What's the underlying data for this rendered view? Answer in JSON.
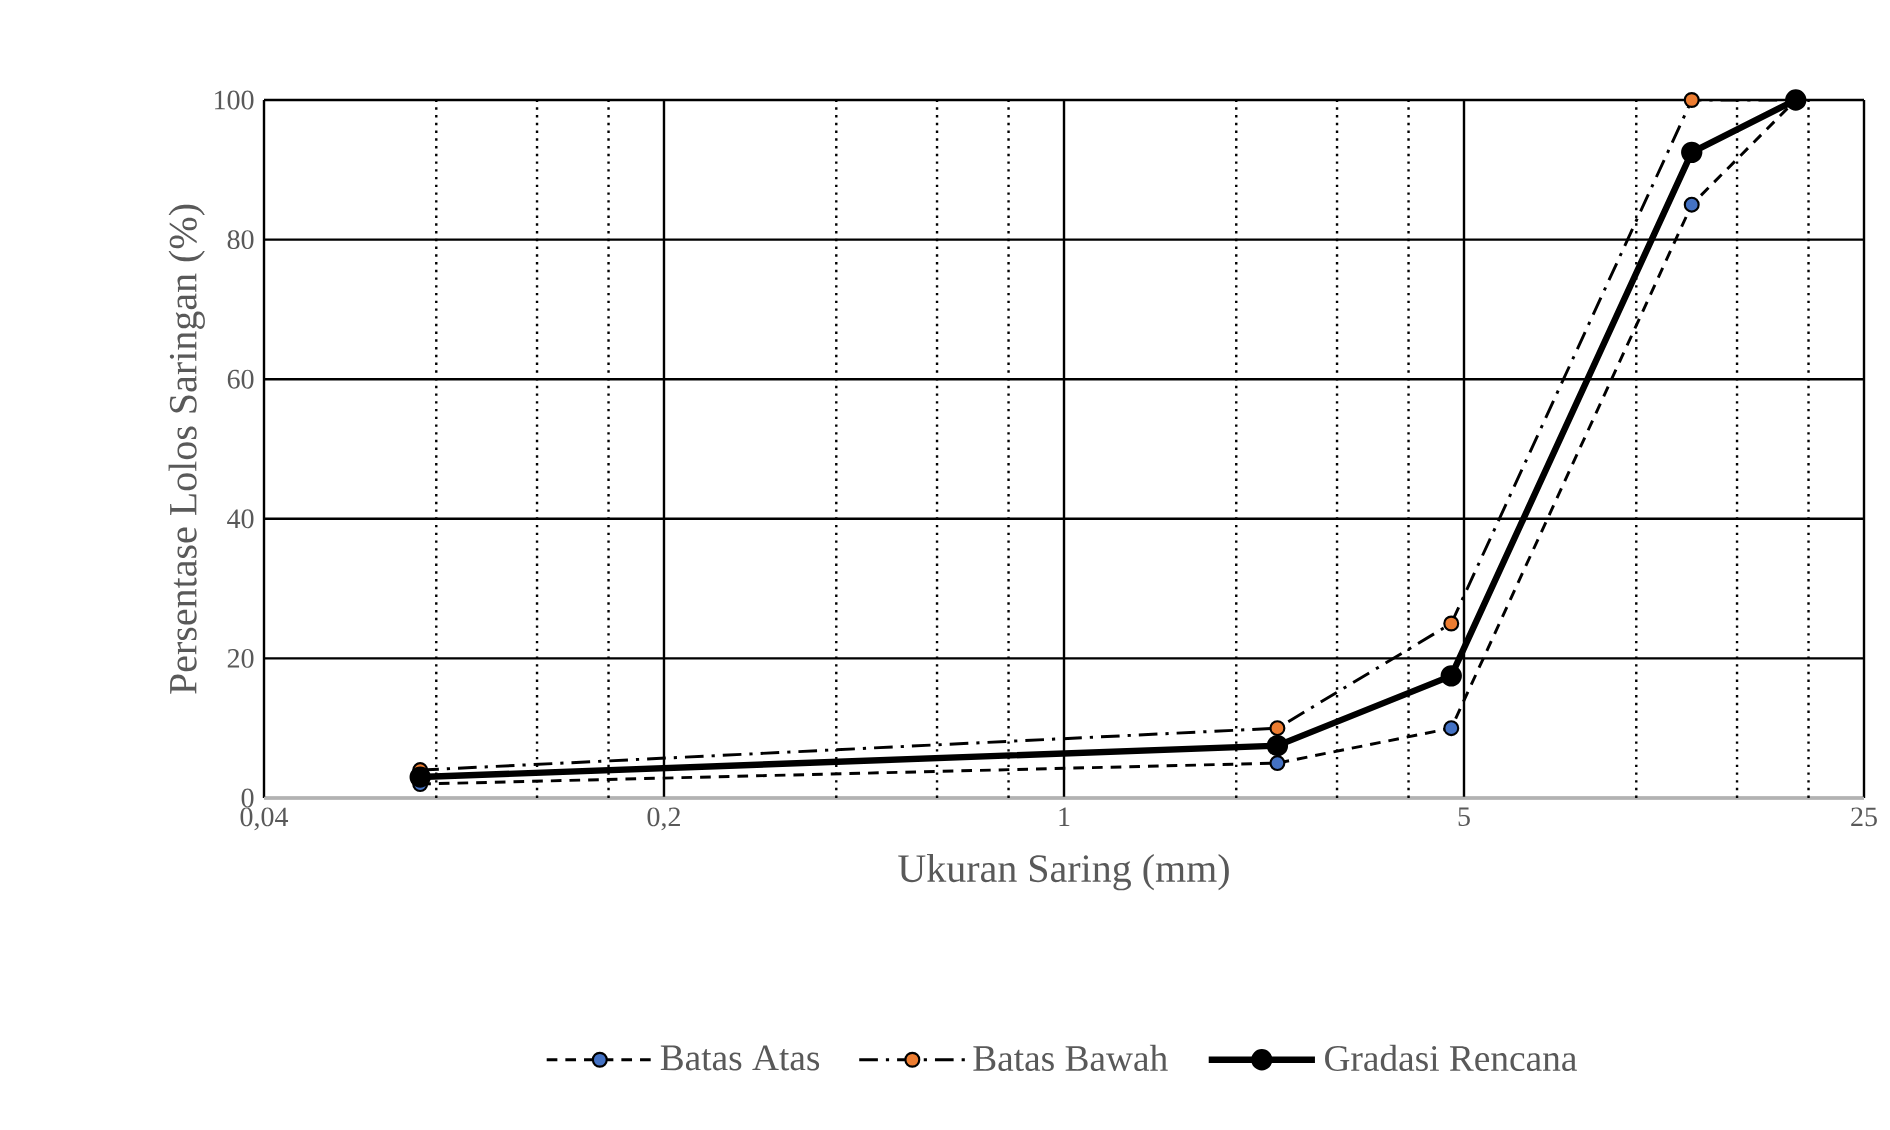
{
  "chart_data": {
    "type": "line",
    "xlabel": "Ukuran Saring (mm)",
    "ylabel": "Persentase Lolos Saringan (%)",
    "log": "x",
    "xlim": [
      0.04,
      25
    ],
    "ylim": [
      0,
      100
    ],
    "xticks": [
      {
        "value": 0.04,
        "label": "0,04"
      },
      {
        "value": 0.08,
        "label": null
      },
      {
        "value": 0.12,
        "label": null
      },
      {
        "value": 0.16,
        "label": null
      },
      {
        "value": 0.2,
        "label": "0,2"
      },
      {
        "value": 0.4,
        "label": null
      },
      {
        "value": 0.6,
        "label": null
      },
      {
        "value": 0.8,
        "label": null
      },
      1,
      {
        "value": 2,
        "label": null
      },
      {
        "value": 3,
        "label": null
      },
      {
        "value": 4,
        "label": null
      },
      5,
      {
        "value": 10,
        "label": null
      },
      {
        "value": 15,
        "label": null
      },
      {
        "value": 20,
        "label": null
      },
      25
    ],
    "yticks": [
      0,
      20,
      40,
      60,
      80,
      100
    ],
    "x": [
      0.075,
      2.36,
      4.75,
      12.5,
      19
    ],
    "series": [
      {
        "name": "Batas Atas",
        "color": "#4472c4",
        "line_style": "dashed",
        "values": [
          2,
          5,
          10,
          85,
          100
        ]
      },
      {
        "name": "Batas Bawah",
        "color": "#ed7d31",
        "line_style": "dashdot",
        "values": [
          4,
          10,
          25,
          100,
          100
        ]
      },
      {
        "name": "Gradasi Rencana",
        "color": "#000000",
        "line_style": "solid",
        "values": [
          3,
          7.5,
          17.5,
          92.5,
          100
        ]
      }
    ],
    "marker": "circle",
    "grid": true,
    "legend": "bottom"
  }
}
